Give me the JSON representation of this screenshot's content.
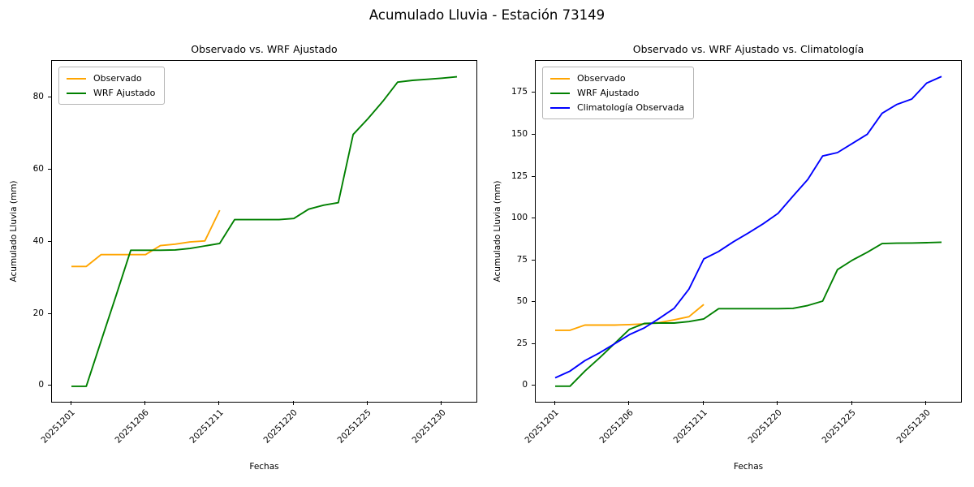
{
  "suptitle": "Acumulado Lluvia - Estación 73149",
  "chart_data": [
    {
      "type": "line",
      "title": "Observado vs. WRF Ajustado",
      "xlabel": "Fechas",
      "ylabel": "Acumulado Lluvia (mm)",
      "n_points": 27,
      "x_tick_indices": [
        0,
        5,
        10,
        15,
        20,
        25
      ],
      "x_tick_labels": [
        "20251201",
        "20251206",
        "20251211",
        "20251220",
        "20251225",
        "20251230"
      ],
      "y_ticks": [
        0,
        20,
        40,
        60,
        80
      ],
      "ylim": [
        -4.3,
        90.2
      ],
      "grid": false,
      "legend_position": "upper-left",
      "series": [
        {
          "name": "Observado",
          "color": "#FFA500",
          "start_index": 0,
          "values": [
            33.2,
            33.2,
            36.5,
            36.5,
            36.5,
            36.5,
            39.0,
            39.4,
            40.0,
            40.3,
            48.8
          ]
        },
        {
          "name": "WRF Ajustado",
          "color": "#008000",
          "start_index": 0,
          "values": [
            0,
            0,
            12.5,
            25.0,
            37.7,
            37.7,
            37.7,
            37.8,
            38.2,
            38.9,
            39.6,
            46.2,
            46.2,
            46.2,
            46.2,
            46.5,
            49.1,
            50.2,
            50.9,
            69.8,
            74.2,
            79.0,
            84.3,
            84.8,
            85.1,
            85.4,
            85.8
          ]
        }
      ]
    },
    {
      "type": "line",
      "title": "Observado vs. WRF Ajustado vs. Climatología",
      "xlabel": "Fechas",
      "ylabel": "Acumulado Lluvia (mm)",
      "n_points": 27,
      "x_tick_indices": [
        0,
        5,
        10,
        15,
        20,
        25
      ],
      "x_tick_labels": [
        "20251201",
        "20251206",
        "20251211",
        "20251220",
        "20251225",
        "20251230"
      ],
      "y_ticks": [
        0,
        25,
        50,
        75,
        100,
        125,
        150,
        175
      ],
      "ylim": [
        -9.3,
        194.3
      ],
      "grid": false,
      "legend_position": "upper-left",
      "series": [
        {
          "name": "Observado",
          "color": "#FFA500",
          "start_index": 0,
          "values": [
            33.4,
            33.4,
            36.5,
            36.5,
            36.5,
            36.8,
            37.2,
            38.0,
            39.6,
            41.5,
            48.8
          ]
        },
        {
          "name": "WRF Ajustado",
          "color": "#008000",
          "start_index": 0,
          "values": [
            0,
            0,
            9,
            17,
            25.5,
            34,
            37.5,
            37.7,
            37.7,
            38.6,
            40.2,
            46.3,
            46.3,
            46.3,
            46.3,
            46.3,
            46.5,
            48.2,
            50.8,
            69.6,
            75.3,
            80.0,
            85.2,
            85.4,
            85.5,
            85.7,
            86.0
          ]
        },
        {
          "name": "Climatología Observada",
          "color": "#0000FF",
          "start_index": 0,
          "values": [
            5,
            9,
            15.3,
            20,
            25.3,
            30.8,
            34.8,
            40.5,
            46.5,
            58,
            76,
            80.5,
            86.3,
            91.5,
            97,
            103.2,
            113.5,
            123.5,
            137.5,
            139.5,
            145,
            150.5,
            163,
            168.3,
            171.5,
            181,
            185
          ]
        }
      ]
    }
  ]
}
